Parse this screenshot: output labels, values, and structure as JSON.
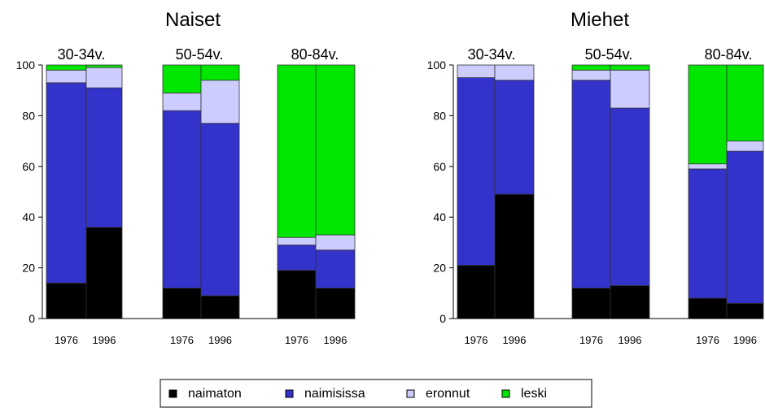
{
  "legend": [
    {
      "key": "naimaton",
      "label": "naimaton",
      "color": "#000000"
    },
    {
      "key": "naimisissa",
      "label": "naimisissa",
      "color": "#3333CC"
    },
    {
      "key": "eronnut",
      "label": "eronnut",
      "color": "#CCCCFF"
    },
    {
      "key": "leski",
      "label": "leski",
      "color": "#00E600"
    }
  ],
  "chart_data": [
    {
      "type": "bar",
      "stacked": true,
      "title": "Naiset",
      "ylim": [
        0,
        100
      ],
      "yticks": [
        "0",
        "20",
        "40",
        "60",
        "80",
        "100"
      ],
      "groups": [
        {
          "label": "30-34v.",
          "bars": [
            {
              "year": "1976",
              "naimaton": 14,
              "naimisissa": 79,
              "eronnut": 5,
              "leski": 2
            },
            {
              "year": "1996",
              "naimaton": 36,
              "naimisissa": 55,
              "eronnut": 8,
              "leski": 1
            }
          ]
        },
        {
          "label": "50-54v.",
          "bars": [
            {
              "year": "1976",
              "naimaton": 12,
              "naimisissa": 70,
              "eronnut": 7,
              "leski": 11
            },
            {
              "year": "1996",
              "naimaton": 9,
              "naimisissa": 68,
              "eronnut": 17,
              "leski": 6
            }
          ]
        },
        {
          "label": "80-84v.",
          "bars": [
            {
              "year": "1976",
              "naimaton": 19,
              "naimisissa": 10,
              "eronnut": 3,
              "leski": 68
            },
            {
              "year": "1996",
              "naimaton": 12,
              "naimisissa": 15,
              "eronnut": 6,
              "leski": 67
            }
          ]
        }
      ]
    },
    {
      "type": "bar",
      "stacked": true,
      "title": "Miehet",
      "ylim": [
        0,
        100
      ],
      "yticks": [
        "0",
        "20",
        "40",
        "60",
        "80",
        "100"
      ],
      "groups": [
        {
          "label": "30-34v.",
          "bars": [
            {
              "year": "1976",
              "naimaton": 21,
              "naimisissa": 74,
              "eronnut": 5,
              "leski": 0
            },
            {
              "year": "1996",
              "naimaton": 49,
              "naimisissa": 45,
              "eronnut": 6,
              "leski": 0
            }
          ]
        },
        {
          "label": "50-54v.",
          "bars": [
            {
              "year": "1976",
              "naimaton": 12,
              "naimisissa": 82,
              "eronnut": 4,
              "leski": 2
            },
            {
              "year": "1996",
              "naimaton": 13,
              "naimisissa": 70,
              "eronnut": 15,
              "leski": 2
            }
          ]
        },
        {
          "label": "80-84v.",
          "bars": [
            {
              "year": "1976",
              "naimaton": 8,
              "naimisissa": 51,
              "eronnut": 2,
              "leski": 39
            },
            {
              "year": "1996",
              "naimaton": 6,
              "naimisissa": 60,
              "eronnut": 4,
              "leski": 30
            }
          ]
        }
      ]
    }
  ]
}
